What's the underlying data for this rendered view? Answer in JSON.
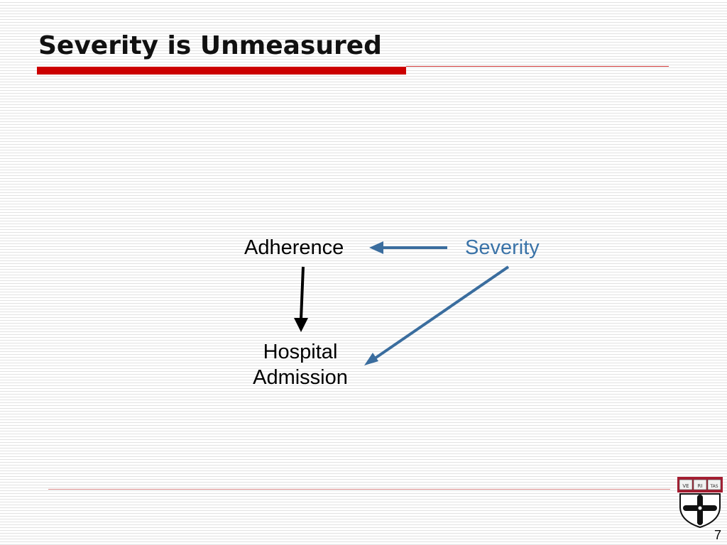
{
  "slide": {
    "title": "Severity is Unmeasured",
    "page_number": "7"
  },
  "diagram": {
    "nodes": {
      "adherence": "Adherence",
      "severity": "Severity",
      "hospital_line1": "Hospital",
      "hospital_line2": "Admission"
    },
    "edges": [
      {
        "from": "Severity",
        "to": "Adherence",
        "color": "#3a6d9e"
      },
      {
        "from": "Adherence",
        "to": "Hospital Admission",
        "color": "#000000"
      },
      {
        "from": "Severity",
        "to": "Hospital Admission",
        "color": "#3a6d9e"
      }
    ]
  },
  "logo": {
    "lettering": [
      "VE",
      "RI",
      "TAS"
    ],
    "colors": {
      "crimson": "#a51c30",
      "cross": "#111111"
    }
  },
  "colors": {
    "title_bar": "#cc0000",
    "severity_text": "#3a73a8"
  }
}
